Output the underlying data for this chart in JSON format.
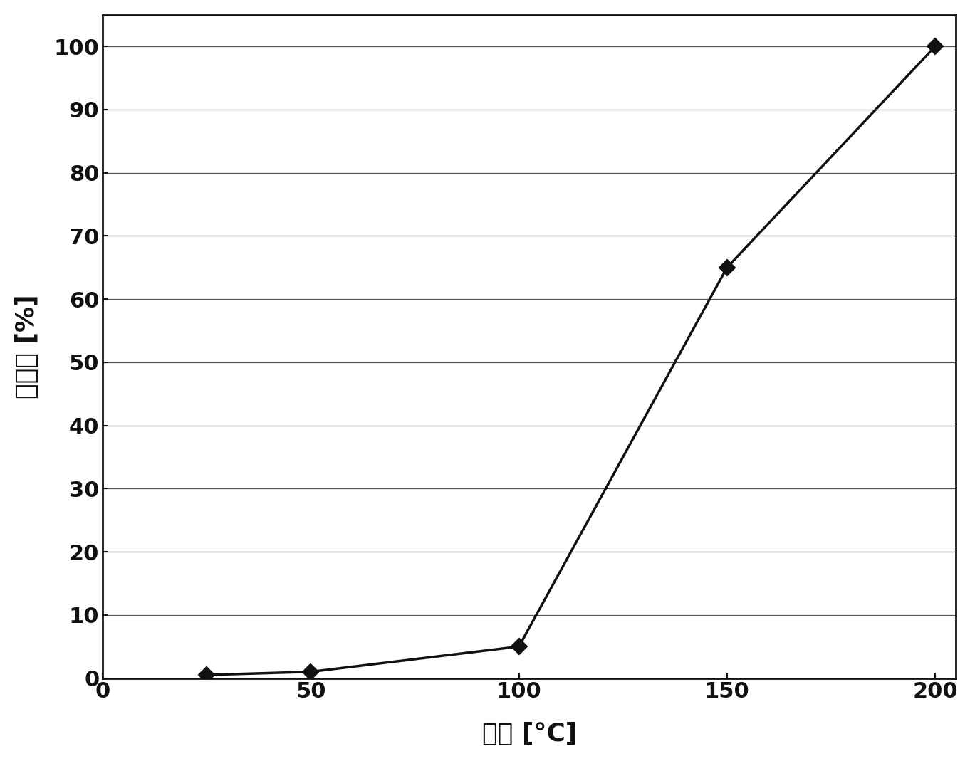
{
  "x": [
    25,
    50,
    100,
    150,
    200
  ],
  "y": [
    0.5,
    1.0,
    5.0,
    65.0,
    100.0
  ],
  "xlabel": "温度 [°C]",
  "ylabel": "转化率 [%]",
  "xlim": [
    0,
    205
  ],
  "ylim": [
    0,
    105
  ],
  "xticks": [
    0,
    50,
    100,
    150,
    200
  ],
  "yticks": [
    0,
    10,
    20,
    30,
    40,
    50,
    60,
    70,
    80,
    90,
    100
  ],
  "line_color": "#111111",
  "marker_color": "#111111",
  "marker": "D",
  "marker_size": 11,
  "line_width": 2.5,
  "grid_color": "#555555",
  "grid_linewidth": 0.9,
  "background_color": "#ffffff",
  "label_fontsize": 26,
  "tick_fontsize": 22,
  "spine_linewidth": 2.0
}
